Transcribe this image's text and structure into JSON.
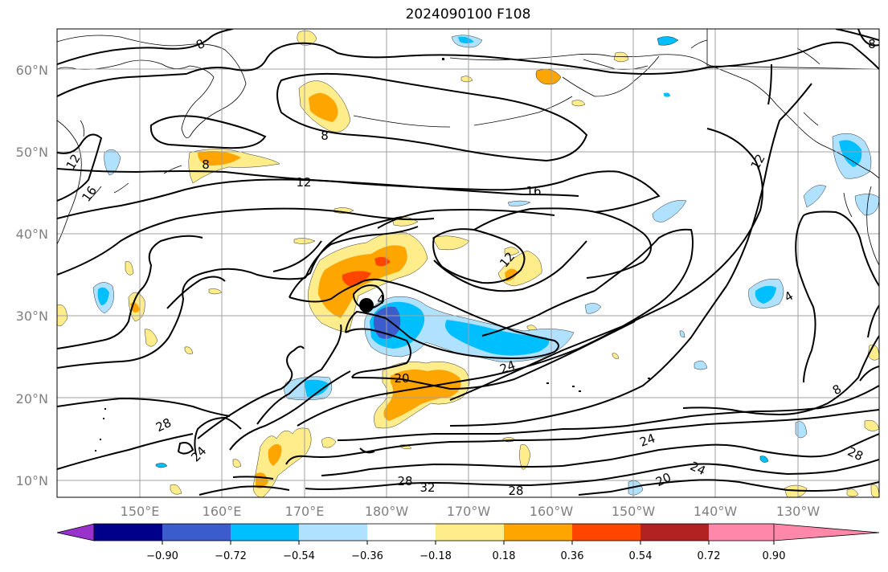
{
  "title": "2024090100 F108",
  "map": {
    "projection": "PlateCarree",
    "lon_range": [
      140,
      240
    ],
    "lat_range": [
      8,
      65
    ],
    "grid": true,
    "lat_ticks": [
      "10°N",
      "20°N",
      "30°N",
      "40°N",
      "50°N",
      "60°N"
    ],
    "lon_ticks": [
      "150°E",
      "160°E",
      "170°E",
      "180°W",
      "170°W",
      "160°W",
      "150°W",
      "140°W",
      "130°W"
    ],
    "marker": {
      "name": "storm-center-marker",
      "lon": 178.2,
      "lat": 31.3,
      "color": "#000000"
    },
    "contour_labels": [
      "8",
      "8",
      "8",
      "8",
      "8",
      "12",
      "12",
      "12",
      "12",
      "16",
      "16",
      "4",
      "4",
      "20",
      "20",
      "24",
      "24",
      "24",
      "24",
      "28",
      "28",
      "28",
      "28",
      "32"
    ]
  },
  "colorbar": {
    "tick_labels": [
      "−0.90",
      "−0.72",
      "−0.54",
      "−0.36",
      "−0.18",
      "0.18",
      "0.36",
      "0.54",
      "0.72",
      "0.90"
    ],
    "colors": [
      "#9932cc",
      "#00008b",
      "#3a5ccc",
      "#00bfff",
      "#b0e2ff",
      "#ffffff",
      "#ffec8b",
      "#ffa500",
      "#ff4500",
      "#b22222",
      "#ff88aa"
    ]
  }
}
